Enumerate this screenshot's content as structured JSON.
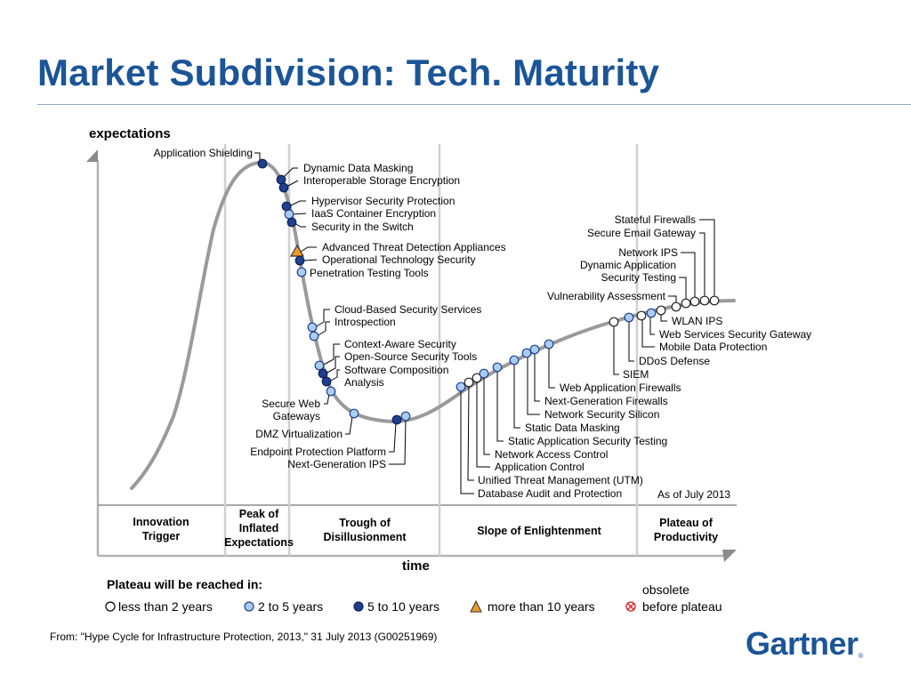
{
  "title": "Market Subdivision: Tech. Maturity",
  "source_note": "From: \"Hype Cycle for Infrastructure Protection, 2013,\" 31 July 2013 (G00251969)",
  "logo_text": "Gartner",
  "colors": {
    "title": "#1b5597",
    "curve": "#9a9a9a",
    "dark_blue": "#1f3f8f",
    "light_blue": "#a9cdf0",
    "white": "#ffffff",
    "orange": "#f09a2a",
    "obsolete": "#d81e1e"
  },
  "chart_data": {
    "type": "hype-cycle",
    "ylabel": "expectations",
    "xlabel": "time",
    "as_of": "As of July 2013",
    "phases": [
      "Innovation Trigger",
      "Peak of Inflated Expectations",
      "Trough of Disillusionment",
      "Slope of Enlightenment",
      "Plateau of Productivity"
    ],
    "technologies": [
      {
        "name": "Application Shielding",
        "phase": "Peak of Inflated Expectations",
        "maturity": "5 to 10 years"
      },
      {
        "name": "Dynamic Data Masking",
        "phase": "Peak of Inflated Expectations",
        "maturity": "5 to 10 years"
      },
      {
        "name": "Interoperable Storage Encryption",
        "phase": "Peak of Inflated Expectations",
        "maturity": "5 to 10 years"
      },
      {
        "name": "Hypervisor Security Protection",
        "phase": "Peak of Inflated Expectations",
        "maturity": "5 to 10 years"
      },
      {
        "name": "IaaS Container Encryption",
        "phase": "Peak of Inflated Expectations",
        "maturity": "2 to 5 years"
      },
      {
        "name": "Security in the Switch",
        "phase": "Peak of Inflated Expectations",
        "maturity": "5 to 10 years"
      },
      {
        "name": "Advanced Threat Detection Appliances",
        "phase": "Peak of Inflated Expectations",
        "maturity": "more than 10 years"
      },
      {
        "name": "Operational Technology Security",
        "phase": "Peak of Inflated Expectations",
        "maturity": "5 to 10 years"
      },
      {
        "name": "Penetration Testing Tools",
        "phase": "Peak of Inflated Expectations",
        "maturity": "2 to 5 years"
      },
      {
        "name": "Cloud-Based Security Services",
        "phase": "Trough of Disillusionment",
        "maturity": "2 to 5 years"
      },
      {
        "name": "Introspection",
        "phase": "Trough of Disillusionment",
        "maturity": "2 to 5 years"
      },
      {
        "name": "Context-Aware Security",
        "phase": "Trough of Disillusionment",
        "maturity": "2 to 5 years"
      },
      {
        "name": "Open-Source Security Tools",
        "phase": "Trough of Disillusionment",
        "maturity": "5 to 10 years"
      },
      {
        "name": "Software Composition Analysis",
        "phase": "Trough of Disillusionment",
        "maturity": "5 to 10 years"
      },
      {
        "name": "Secure Web Gateways",
        "phase": "Trough of Disillusionment",
        "maturity": "2 to 5 years"
      },
      {
        "name": "DMZ Virtualization",
        "phase": "Trough of Disillusionment",
        "maturity": "2 to 5 years"
      },
      {
        "name": "Endpoint Protection Platform",
        "phase": "Trough of Disillusionment",
        "maturity": "5 to 10 years"
      },
      {
        "name": "Next-Generation IPS",
        "phase": "Trough of Disillusionment",
        "maturity": "2 to 5 years"
      },
      {
        "name": "Database Audit and Protection",
        "phase": "Slope of Enlightenment",
        "maturity": "2 to 5 years"
      },
      {
        "name": "Unified Threat Management (UTM)",
        "phase": "Slope of Enlightenment",
        "maturity": "less than 2 years"
      },
      {
        "name": "Application Control",
        "phase": "Slope of Enlightenment",
        "maturity": "less than 2 years"
      },
      {
        "name": "Network Access Control",
        "phase": "Slope of Enlightenment",
        "maturity": "2 to 5 years"
      },
      {
        "name": "Static Application Security Testing",
        "phase": "Slope of Enlightenment",
        "maturity": "2 to 5 years"
      },
      {
        "name": "Static Data Masking",
        "phase": "Slope of Enlightenment",
        "maturity": "2 to 5 years"
      },
      {
        "name": "Network Security Silicon",
        "phase": "Slope of Enlightenment",
        "maturity": "2 to 5 years"
      },
      {
        "name": "Next-Generation Firewalls",
        "phase": "Slope of Enlightenment",
        "maturity": "2 to 5 years"
      },
      {
        "name": "Web Application Firewalls",
        "phase": "Slope of Enlightenment",
        "maturity": "2 to 5 years"
      },
      {
        "name": "SIEM",
        "phase": "Slope of Enlightenment",
        "maturity": "less than 2 years"
      },
      {
        "name": "DDoS Defense",
        "phase": "Slope of Enlightenment",
        "maturity": "2 to 5 years"
      },
      {
        "name": "Mobile Data Protection",
        "phase": "Slope of Enlightenment",
        "maturity": "less than 2 years"
      },
      {
        "name": "Web Services Security Gateway",
        "phase": "Slope of Enlightenment",
        "maturity": "2 to 5 years"
      },
      {
        "name": "WLAN IPS",
        "phase": "Slope of Enlightenment",
        "maturity": "less than 2 years"
      },
      {
        "name": "Vulnerability Assessment",
        "phase": "Plateau of Productivity",
        "maturity": "less than 2 years"
      },
      {
        "name": "Dynamic Application Security Testing",
        "phase": "Plateau of Productivity",
        "maturity": "less than 2 years"
      },
      {
        "name": "Network IPS",
        "phase": "Plateau of Productivity",
        "maturity": "less than 2 years"
      },
      {
        "name": "Secure Email Gateway",
        "phase": "Plateau of Productivity",
        "maturity": "less than 2 years"
      },
      {
        "name": "Stateful Firewalls",
        "phase": "Plateau of Productivity",
        "maturity": "less than 2 years"
      }
    ],
    "legend": {
      "heading": "Plateau will be reached in:",
      "items": [
        {
          "key": "less than 2 years",
          "label": "less than 2 years",
          "marker": "white-circle"
        },
        {
          "key": "2 to 5 years",
          "label": "2 to 5 years",
          "marker": "light-blue-circle"
        },
        {
          "key": "5 to 10 years",
          "label": "5 to 10 years",
          "marker": "dark-blue-circle"
        },
        {
          "key": "more than 10 years",
          "label": "more than 10 years",
          "marker": "orange-triangle"
        },
        {
          "key": "obsolete",
          "label_line1": "obsolete",
          "label_line2": "before plateau",
          "marker": "red-crossed-circle"
        }
      ]
    }
  }
}
